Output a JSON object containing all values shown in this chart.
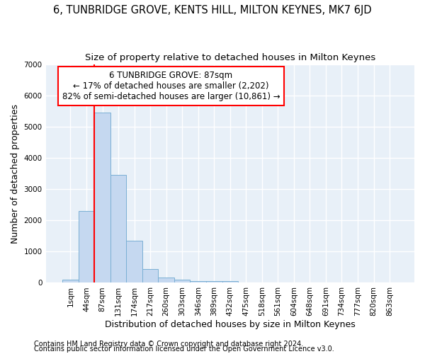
{
  "title": "6, TUNBRIDGE GROVE, KENTS HILL, MILTON KEYNES, MK7 6JD",
  "subtitle": "Size of property relative to detached houses in Milton Keynes",
  "xlabel": "Distribution of detached houses by size in Milton Keynes",
  "ylabel": "Number of detached properties",
  "footer1": "Contains HM Land Registry data © Crown copyright and database right 2024.",
  "footer2": "Contains public sector information licensed under the Open Government Licence v3.0.",
  "bin_labels": [
    "1sqm",
    "44sqm",
    "87sqm",
    "131sqm",
    "174sqm",
    "217sqm",
    "260sqm",
    "303sqm",
    "346sqm",
    "389sqm",
    "432sqm",
    "475sqm",
    "518sqm",
    "561sqm",
    "604sqm",
    "648sqm",
    "691sqm",
    "734sqm",
    "777sqm",
    "820sqm",
    "863sqm"
  ],
  "bar_values": [
    100,
    2300,
    5450,
    3450,
    1350,
    450,
    175,
    100,
    50,
    50,
    50,
    0,
    0,
    0,
    0,
    0,
    0,
    0,
    0,
    0,
    0
  ],
  "bar_color": "#c5d8f0",
  "bar_edge_color": "#7aafd4",
  "highlight_bar_index": 2,
  "highlight_line_color": "red",
  "annotation_line1": "6 TUNBRIDGE GROVE: 87sqm",
  "annotation_line2": "← 17% of detached houses are smaller (2,202)",
  "annotation_line3": "82% of semi-detached houses are larger (10,861) →",
  "annotation_box_color": "white",
  "annotation_box_edge": "red",
  "ylim": [
    0,
    7000
  ],
  "yticks": [
    0,
    1000,
    2000,
    3000,
    4000,
    5000,
    6000,
    7000
  ],
  "bg_color": "#e8f0f8",
  "grid_color": "white",
  "title_fontsize": 10.5,
  "subtitle_fontsize": 9.5,
  "axis_label_fontsize": 9,
  "tick_fontsize": 7.5,
  "footer_fontsize": 7,
  "annotation_fontsize": 8.5
}
